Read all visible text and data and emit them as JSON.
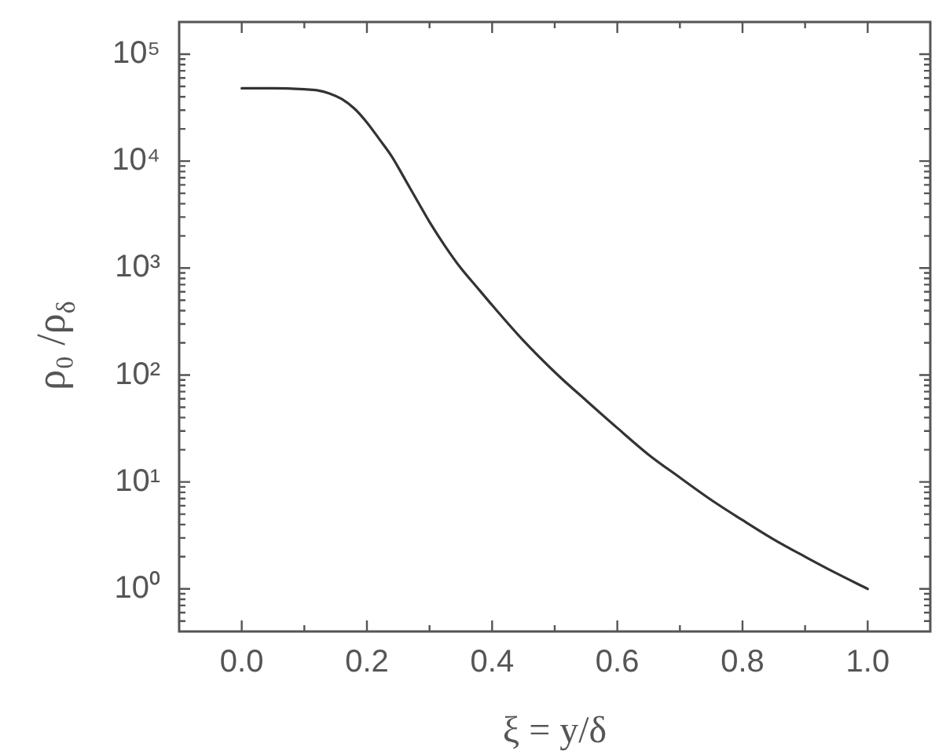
{
  "chart_data": {
    "type": "line",
    "xlabel": "ξ = y/δ",
    "ylabel": "ρ₀ /ρ$_{δ}$",
    "x": [
      0,
      0.05,
      0.1,
      0.12,
      0.14,
      0.16,
      0.18,
      0.2,
      0.22,
      0.24,
      0.26,
      0.28,
      0.3,
      0.325,
      0.35,
      0.375,
      0.4,
      0.45,
      0.505,
      0.55,
      0.6,
      0.65,
      0.7,
      0.75,
      0.8,
      0.85,
      0.9,
      0.95,
      1.0
    ],
    "series": [
      {
        "color": "#333333",
        "values": [
          48000,
          48000,
          47000,
          46000,
          43000,
          38000,
          31000,
          23000,
          16000,
          11000,
          6900,
          4300,
          2700,
          1600,
          1000,
          670,
          450,
          210,
          100,
          58,
          32,
          18,
          11,
          6.8,
          4.4,
          2.9,
          2.0,
          1.4,
          1.0
        ]
      }
    ],
    "xlim": [
      -0.1,
      1.1
    ],
    "xticks": [
      {
        "value": 0,
        "label": "0.0"
      },
      {
        "value": 0.1,
        "label": null
      },
      0.2,
      {
        "value": 0.3,
        "label": null
      },
      0.4,
      {
        "value": 0.5,
        "label": null
      },
      0.6,
      {
        "value": 0.7,
        "label": null
      },
      0.8,
      {
        "value": 0.9,
        "label": null
      },
      {
        "value": 1,
        "label": "1.0"
      }
    ],
    "ylim": [
      0.4,
      200000
    ],
    "yticks": [
      {
        "value": 0.5,
        "label": null
      },
      {
        "value": 0.6,
        "label": null
      },
      {
        "value": 0.7,
        "label": null
      },
      {
        "value": 0.8,
        "label": null
      },
      {
        "value": 0.9,
        "label": null
      },
      {
        "value": 1,
        "label": "10⁰"
      },
      {
        "value": 2,
        "label": null
      },
      {
        "value": 3,
        "label": null
      },
      {
        "value": 4,
        "label": null
      },
      {
        "value": 5,
        "label": null
      },
      {
        "value": 6,
        "label": null
      },
      {
        "value": 7,
        "label": null
      },
      {
        "value": 8,
        "label": null
      },
      {
        "value": 9,
        "label": null
      },
      {
        "value": 10,
        "label": "10¹"
      },
      {
        "value": 20,
        "label": null
      },
      {
        "value": 30,
        "label": null
      },
      {
        "value": 40,
        "label": null
      },
      {
        "value": 50,
        "label": null
      },
      {
        "value": 60,
        "label": null
      },
      {
        "value": 70,
        "label": null
      },
      {
        "value": 80,
        "label": null
      },
      {
        "value": 90,
        "label": null
      },
      {
        "value": 100,
        "label": "10²"
      },
      {
        "value": 200,
        "label": null
      },
      {
        "value": 300,
        "label": null
      },
      {
        "value": 400,
        "label": null
      },
      {
        "value": 500,
        "label": null
      },
      {
        "value": 600,
        "label": null
      },
      {
        "value": 700,
        "label": null
      },
      {
        "value": 800,
        "label": null
      },
      {
        "value": 900,
        "label": null
      },
      {
        "value": 1000,
        "label": "10³"
      },
      {
        "value": 2000,
        "label": null
      },
      {
        "value": 3000,
        "label": null
      },
      {
        "value": 4000,
        "label": null
      },
      {
        "value": 5000,
        "label": null
      },
      {
        "value": 6000,
        "label": null
      },
      {
        "value": 7000,
        "label": null
      },
      {
        "value": 8000,
        "label": null
      },
      {
        "value": 9000,
        "label": null
      },
      {
        "value": 10000,
        "label": "10⁴"
      },
      {
        "value": 20000,
        "label": null
      },
      {
        "value": 30000,
        "label": null
      },
      {
        "value": 40000,
        "label": null
      },
      {
        "value": 50000,
        "label": null
      },
      {
        "value": 60000,
        "label": null
      },
      {
        "value": 70000,
        "label": null
      },
      {
        "value": 80000,
        "label": null
      },
      {
        "value": 90000,
        "label": null
      },
      {
        "value": 100000,
        "label": "10⁵"
      }
    ],
    "log": "y",
    "marker": "none",
    "line_style": "solid"
  }
}
